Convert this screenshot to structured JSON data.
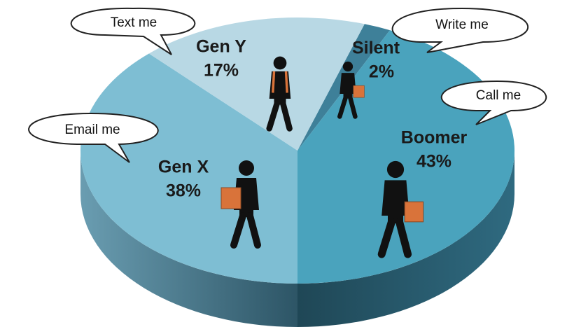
{
  "chart_data": {
    "type": "pie",
    "categories": [
      "Silent",
      "Boomer",
      "Gen X",
      "Gen Y"
    ],
    "values": [
      2,
      43,
      38,
      17
    ],
    "value_labels": [
      "2%",
      "43%",
      "38%",
      "17%"
    ],
    "colors": [
      "#3e8099",
      "#4aa3bd",
      "#7ebed3",
      "#b8d8e4"
    ],
    "annotations": [
      "Text me",
      "Write me",
      "Call me",
      "Email me"
    ]
  }
}
